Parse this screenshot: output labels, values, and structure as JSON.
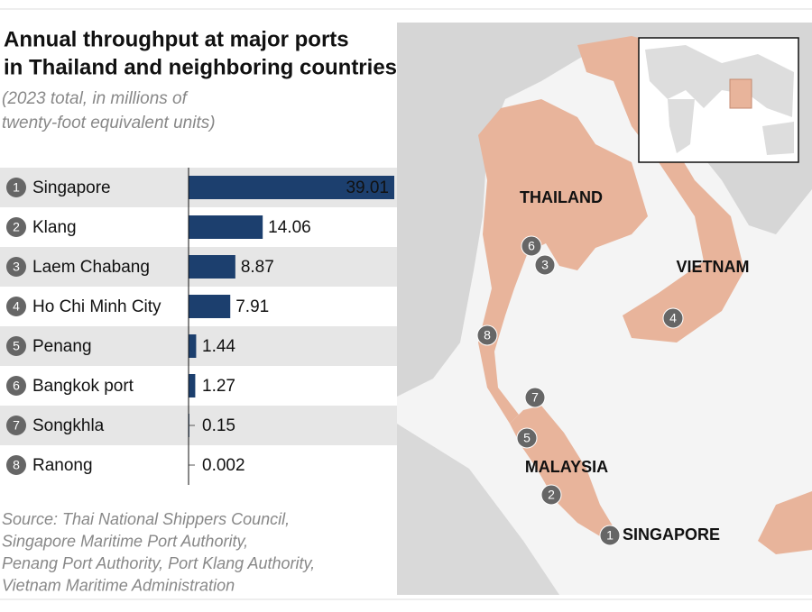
{
  "chart_data": {
    "type": "bar",
    "title": [
      "Annual throughput at major ports",
      "in Thailand and neighboring countries"
    ],
    "subtitle": [
      "(2023 total, in millions of",
      "twenty-foot equivalent units)"
    ],
    "ranks": [
      1,
      2,
      3,
      4,
      5,
      6,
      7,
      8
    ],
    "categories": [
      "Singapore",
      "Klang",
      "Laem Chabang",
      "Ho Chi Minh City",
      "Penang",
      "Bangkok port",
      "Songkhla",
      "Ranong"
    ],
    "values": [
      39.01,
      14.06,
      8.87,
      7.91,
      1.44,
      1.27,
      0.15,
      0.002
    ],
    "color": "#1c3f6e",
    "map_labels": [
      "THAILAND",
      "VIETNAM",
      "MALAYSIA",
      "SINGAPORE"
    ],
    "source": [
      "Source: Thai National Shippers Council,",
      "Singapore Maritime Port Authority,",
      "Penang Port Authority, Port Klang Authority,",
      "Vietnam Maritime Administration"
    ]
  }
}
